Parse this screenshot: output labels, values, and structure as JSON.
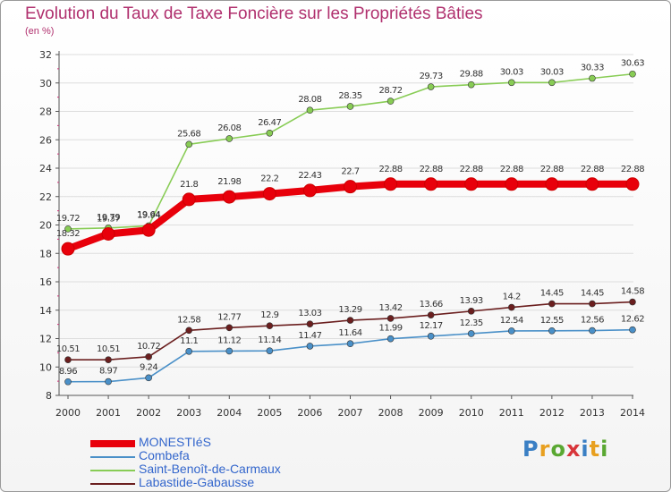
{
  "title": "Evolution du Taux de Taxe Foncière sur les Propriétés Bâties",
  "unit_label": "(en %)",
  "logo_text": "Proxiti",
  "chart_data": {
    "type": "line",
    "title": "Evolution du Taux de Taxe Foncière sur les Propriétés Bâties",
    "ylabel": "(en %)",
    "xlabel": "",
    "ylim": [
      8,
      32
    ],
    "yticks": [
      8,
      10,
      12,
      14,
      16,
      18,
      20,
      22,
      24,
      26,
      28,
      30,
      32
    ],
    "categories": [
      "2000",
      "2001",
      "2002",
      "2003",
      "2004",
      "2005",
      "2006",
      "2007",
      "2008",
      "2009",
      "2010",
      "2011",
      "2012",
      "2013",
      "2014"
    ],
    "series": [
      {
        "name": "MONESTIéS",
        "color": "#e8000b",
        "values": [
          18.32,
          19.37,
          19.64,
          21.8,
          21.98,
          22.2,
          22.43,
          22.7,
          22.88,
          22.88,
          22.88,
          22.88,
          22.88,
          22.88,
          22.88
        ],
        "labels": [
          "18.32",
          "19.37",
          "19.64",
          "21.8",
          "21.98",
          "22.2",
          "22.43",
          "22.7",
          "22.88",
          "22.88",
          "22.88",
          "22.88",
          "22.88",
          "22.88",
          "22.88"
        ]
      },
      {
        "name": "Combefa",
        "color": "#4a90c8",
        "values": [
          8.96,
          8.97,
          9.24,
          11.1,
          11.12,
          11.14,
          11.47,
          11.64,
          11.99,
          12.17,
          12.35,
          12.54,
          12.55,
          12.56,
          12.62
        ],
        "labels": [
          "8.96",
          "8.97",
          "9.24",
          "11.1",
          "11.12",
          "11.14",
          "11.47",
          "11.64",
          "11.99",
          "12.17",
          "12.35",
          "12.54",
          "12.55",
          "12.56",
          "12.62"
        ]
      },
      {
        "name": "Saint-Benoît-de-Carmaux",
        "color": "#88cc55",
        "values": [
          19.72,
          19.79,
          19.94,
          25.68,
          26.08,
          26.47,
          28.08,
          28.35,
          28.72,
          29.73,
          29.88,
          30.03,
          30.03,
          30.33,
          30.63
        ],
        "labels": [
          "19.72",
          "19.79",
          "19.94",
          "25.68",
          "26.08",
          "26.47",
          "28.08",
          "28.35",
          "28.72",
          "29.73",
          "29.88",
          "30.03",
          "30.03",
          "30.33",
          "30.63"
        ]
      },
      {
        "name": "Labastide-Gabausse",
        "color": "#6b1f1f",
        "values": [
          10.51,
          10.51,
          10.72,
          12.58,
          12.77,
          12.9,
          13.03,
          13.29,
          13.42,
          13.66,
          13.93,
          14.2,
          14.45,
          14.45,
          14.58
        ],
        "labels": [
          "10.51",
          "10.51",
          "10.72",
          "12.58",
          "12.77",
          "12.9",
          "13.03",
          "13.29",
          "13.42",
          "13.66",
          "13.93",
          "14.2",
          "14.45",
          "14.45",
          "14.58"
        ]
      }
    ],
    "legend_position": "bottom-left"
  }
}
